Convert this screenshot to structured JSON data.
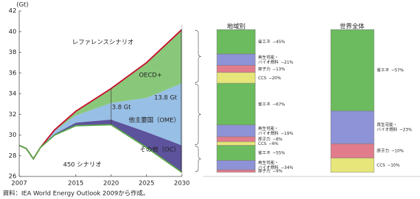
{
  "chart_data": [
    {
      "type": "area",
      "y_label": "(Gt)",
      "x": [
        2007,
        2008,
        2009,
        2010,
        2012,
        2015,
        2020,
        2025,
        2030
      ],
      "xlim": [
        2007,
        2030
      ],
      "xticks": [
        2007,
        2015,
        2020,
        2025,
        2030
      ],
      "ylim": [
        26,
        42
      ],
      "yticks": [
        26,
        28,
        30,
        32,
        34,
        36,
        38,
        40,
        42
      ],
      "lines": [
        {
          "name": "レファレンスシナリオ",
          "color": "#c8102e",
          "values": [
            29.0,
            28.7,
            27.7,
            28.8,
            30.5,
            32.3,
            34.5,
            37.0,
            40.2
          ]
        },
        {
          "name": "450 シナリオ",
          "color": "#5aa64a",
          "values": [
            29.0,
            28.7,
            27.7,
            28.8,
            30.0,
            30.9,
            31.0,
            28.8,
            26.4
          ]
        }
      ],
      "series": [
        {
          "name": "その他（OC）",
          "color": "#4b3f91",
          "values": [
            0,
            0,
            0,
            0,
            0.1,
            0.3,
            0.5,
            1.5,
            2.6
          ]
        },
        {
          "name": "他主要国（OME）",
          "color": "#8db8e2",
          "values": [
            0,
            0,
            0,
            0,
            0.3,
            0.7,
            1.6,
            3.3,
            6.0
          ]
        },
        {
          "name": "OECD+",
          "color": "#7cc26c",
          "values": [
            0,
            0,
            0,
            0,
            0.1,
            0.4,
            1.4,
            3.4,
            5.2
          ]
        }
      ],
      "annotations": [
        "13.8 Gt",
        "3.8 Gt"
      ],
      "source": "資料：IEA World Energy Outlook 2009から作成。"
    },
    {
      "type": "stacked-bar",
      "series": [
        {
          "name": [
            "省エネ"
          ],
          "color": "#6cbb5e"
        },
        {
          "name": [
            "再生可能・",
            "バイオ燃料"
          ],
          "color": "#8e92d6"
        },
        {
          "name": [
            "原子力"
          ],
          "color": "#e07c8c"
        },
        {
          "name": [
            "CCS"
          ],
          "color": "#e6e67a"
        }
      ],
      "panels": [
        {
          "title": "地域別",
          "groups": [
            {
              "values": [
                45,
                21,
                13,
                20
              ],
              "value_labels": [
                "−45%",
                "−21%",
                "−13%",
                "−20%"
              ]
            },
            {
              "values": [
                67,
                19,
                8,
                6
              ],
              "value_labels": [
                "−67%",
                "−19%",
                "−8%",
                "−6%"
              ]
            },
            {
              "values": [
                55,
                34,
                9,
                null
              ],
              "value_labels": [
                "−55%",
                "−34%",
                "−9%",
                null
              ]
            }
          ]
        },
        {
          "title": "世界全体",
          "groups": [
            {
              "values": [
                57,
                23,
                10,
                10
              ],
              "value_labels": [
                "−57%",
                "−23%",
                "−10%",
                "−10%"
              ]
            }
          ]
        }
      ]
    }
  ]
}
